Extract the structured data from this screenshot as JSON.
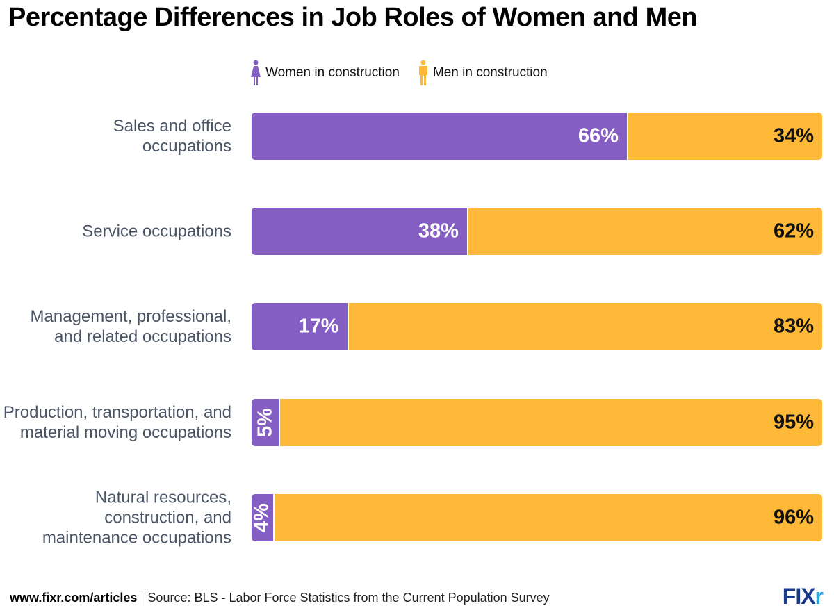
{
  "title": "Percentage Differences in Job Roles of Women and Men",
  "legend": [
    {
      "label": "Women in construction",
      "icon": "woman-icon",
      "color": "#845EC2"
    },
    {
      "label": "Men in construction",
      "icon": "man-icon",
      "color": "#FFB938"
    }
  ],
  "chart_data": {
    "type": "bar",
    "orientation": "horizontal",
    "stacked": true,
    "title": "Percentage Differences in Job Roles of Women and Men",
    "categories": [
      "Sales and office occupations",
      "Service occupations",
      "Management, professional, and related occupations",
      "Production, transportation, and material moving occupations",
      "Natural resources, construction, and maintenance occupations"
    ],
    "series": [
      {
        "name": "Women in construction",
        "color": "#845EC2",
        "values": [
          66,
          38,
          17,
          5,
          4
        ],
        "labels": [
          "66%",
          "38%",
          "17%",
          "5%",
          "4%"
        ]
      },
      {
        "name": "Men in construction",
        "color": "#FFB938",
        "values": [
          34,
          62,
          83,
          95,
          96
        ],
        "labels": [
          "34%",
          "62%",
          "83%",
          "95%",
          "96%"
        ]
      }
    ],
    "xlim": [
      0,
      100
    ],
    "grid": false,
    "legend_position": "top"
  },
  "footer": {
    "url": "www.fixr.com/articles",
    "source": "Source: BLS - Labor Force Statistics from the Current Population Survey"
  },
  "logo": "FIXr"
}
